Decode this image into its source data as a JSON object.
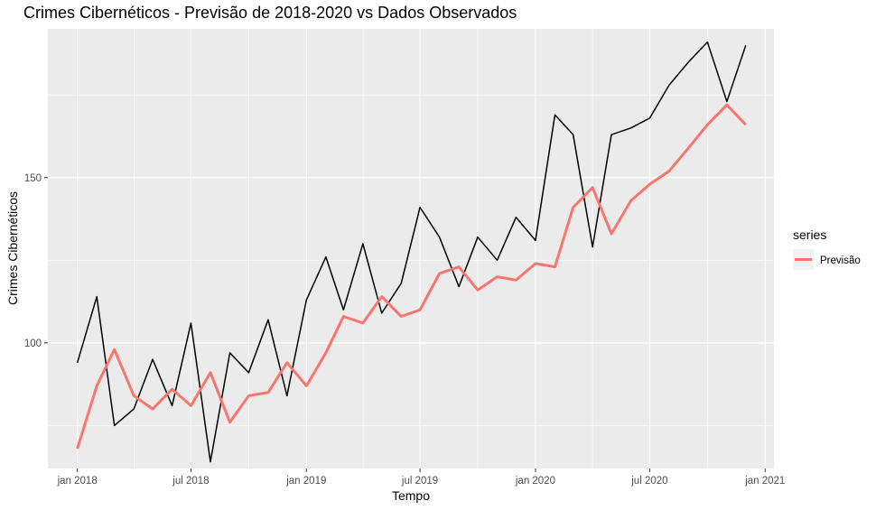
{
  "chart_data": {
    "type": "line",
    "title": "Crimes Cibernéticos - Previsão de 2018-2020 vs Dados Observados",
    "xlabel": "Tempo",
    "ylabel": "Crimes Cibernéticos",
    "x_ticks": [
      "jan 2018",
      "jul 2018",
      "jan 2019",
      "jul 2019",
      "jan 2020",
      "jul 2020",
      "jan 2021"
    ],
    "y_ticks": [
      "100",
      "150"
    ],
    "ylim": [
      62,
      195
    ],
    "xlim": [
      "2017-11-15",
      "2021-01-15"
    ],
    "grid": true,
    "legend_position": "right",
    "legend_title": "series",
    "x": [
      "2018-01",
      "2018-02",
      "2018-03",
      "2018-04",
      "2018-05",
      "2018-06",
      "2018-07",
      "2018-08",
      "2018-09",
      "2018-10",
      "2018-11",
      "2018-12",
      "2019-01",
      "2019-02",
      "2019-03",
      "2019-04",
      "2019-05",
      "2019-06",
      "2019-07",
      "2019-08",
      "2019-09",
      "2019-10",
      "2019-11",
      "2019-12",
      "2020-01",
      "2020-02",
      "2020-03",
      "2020-04",
      "2020-05",
      "2020-06",
      "2020-07",
      "2020-08",
      "2020-09",
      "2020-10",
      "2020-11",
      "2020-12"
    ],
    "series": [
      {
        "color": "#000000",
        "values": [
          94,
          114,
          75,
          80,
          95,
          81,
          106,
          64,
          97,
          91,
          107,
          84,
          113,
          126,
          110,
          130,
          109,
          118,
          141,
          132,
          117,
          132,
          125,
          138,
          131,
          169,
          163,
          129,
          163,
          165,
          168,
          178,
          185,
          191,
          173,
          190
        ]
      },
      {
        "name": "Previsão",
        "color": "#F8766D",
        "values": [
          68,
          87,
          98,
          84,
          80,
          86,
          81,
          91,
          76,
          84,
          85,
          94,
          87,
          97,
          108,
          106,
          114,
          108,
          110,
          121,
          123,
          116,
          120,
          119,
          124,
          123,
          141,
          147,
          133,
          143,
          148,
          152,
          159,
          166,
          172,
          166
        ]
      }
    ]
  }
}
